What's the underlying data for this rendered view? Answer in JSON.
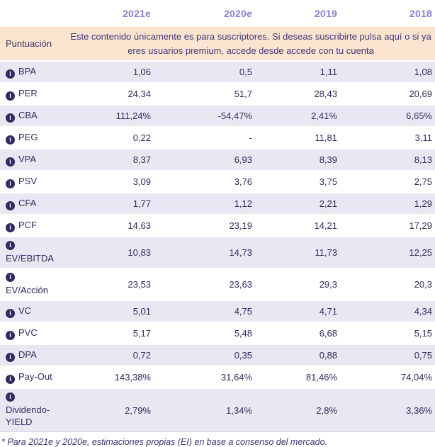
{
  "table": {
    "year_headers": [
      "2021e",
      "2020e",
      "2019",
      "2018"
    ],
    "subscription_row": {
      "label": "Puntuación",
      "message": "Este contenido únicamente es para suscriptores. Si deseas suscribirte pulsa aquí o si ya eres usuarios premium, accede desde accede con tu cuenta"
    },
    "info_icon_glyph": "i",
    "rows": [
      {
        "label": "BPA",
        "values": [
          "1,06",
          "0,5",
          "1,11",
          "1,08"
        ]
      },
      {
        "label": "PER",
        "values": [
          "24,34",
          "51,7",
          "28,43",
          "20,69"
        ]
      },
      {
        "label": "CBA",
        "values": [
          "111,24%",
          "-54,47%",
          "2,41%",
          "6,65%"
        ]
      },
      {
        "label": "PEG",
        "values": [
          "0,22",
          "-",
          "11,81",
          "3,11"
        ]
      },
      {
        "label": "VPA",
        "values": [
          "8,37",
          "6,93",
          "8,39",
          "8,13"
        ]
      },
      {
        "label": "PSV",
        "values": [
          "3,09",
          "3,76",
          "3,75",
          "2,75"
        ]
      },
      {
        "label": "CFA",
        "values": [
          "1,77",
          "1,12",
          "2,21",
          "1,29"
        ]
      },
      {
        "label": "PCF",
        "values": [
          "14,63",
          "23,19",
          "14,21",
          "17,29"
        ]
      },
      {
        "label": "EV/EBITDA",
        "values": [
          "10,83",
          "14,73",
          "11,73",
          "12,25"
        ],
        "icon_own_line": true
      },
      {
        "label": "EV/Acción",
        "values": [
          "23,53",
          "23,63",
          "29,3",
          "20,3"
        ],
        "icon_own_line": true
      },
      {
        "label": "VC",
        "values": [
          "5,01",
          "4,75",
          "4,71",
          "4,34"
        ]
      },
      {
        "label": "PVC",
        "values": [
          "5,17",
          "5,48",
          "6,68",
          "5,15"
        ]
      },
      {
        "label": "DPA",
        "values": [
          "0,72",
          "0,35",
          "0,88",
          "0,75"
        ]
      },
      {
        "label": "Pay-Out",
        "values": [
          "143,38%",
          "31,64%",
          "81,46%",
          "74,04%"
        ]
      },
      {
        "label": "Dividendo-YIELD",
        "values": [
          "2,79%",
          "1,34%",
          "2,8%",
          "3,36%"
        ],
        "icon_own_line": true
      }
    ],
    "footnote": "* Para 2021e y 2020e, estimaciones propias (EI) en base a consenso del mercado."
  },
  "colors": {
    "year_header_text": "#8c80d2",
    "primary_text": "#312b5f",
    "alt_row_bg": "#e9e8f2",
    "notice_bg": "#fce5d0"
  }
}
